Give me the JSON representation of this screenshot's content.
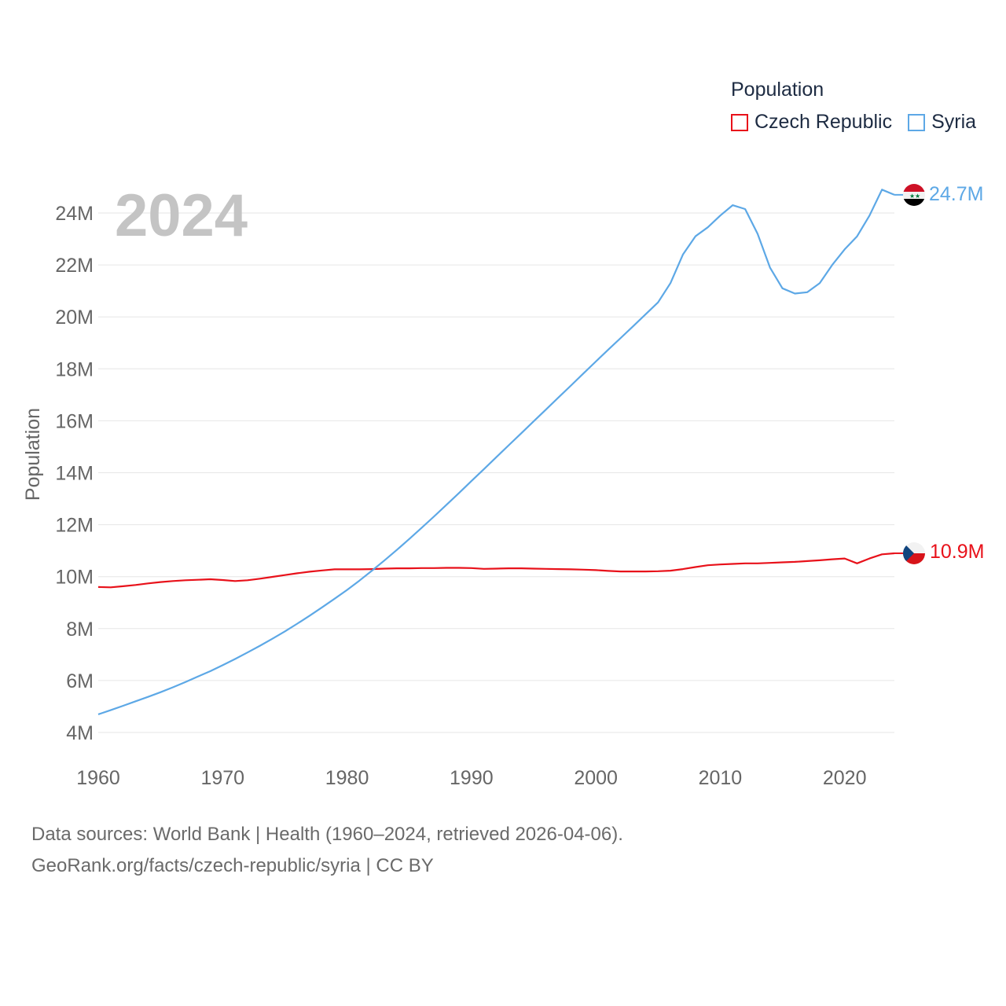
{
  "chart_data": {
    "type": "line",
    "title": "",
    "year_label": "2024",
    "xlabel": "",
    "ylabel": "Population",
    "xlim": [
      1960,
      2024
    ],
    "ylim": [
      4000000,
      24000000
    ],
    "x_ticks": [
      1960,
      1970,
      1980,
      1990,
      2000,
      2010,
      2020
    ],
    "y_ticks": [
      4000000,
      6000000,
      8000000,
      10000000,
      12000000,
      14000000,
      16000000,
      18000000,
      20000000,
      22000000,
      24000000
    ],
    "y_tick_labels": [
      "4M",
      "6M",
      "8M",
      "10M",
      "12M",
      "14M",
      "16M",
      "18M",
      "20M",
      "22M",
      "24M"
    ],
    "legend": {
      "title": "Population",
      "position": "top-right"
    },
    "x": [
      1960,
      1961,
      1962,
      1963,
      1964,
      1965,
      1966,
      1967,
      1968,
      1969,
      1970,
      1971,
      1972,
      1973,
      1974,
      1975,
      1976,
      1977,
      1978,
      1979,
      1980,
      1981,
      1982,
      1983,
      1984,
      1985,
      1986,
      1987,
      1988,
      1989,
      1990,
      1991,
      1992,
      1993,
      1994,
      1995,
      1996,
      1997,
      1998,
      1999,
      2000,
      2001,
      2002,
      2003,
      2004,
      2005,
      2006,
      2007,
      2008,
      2009,
      2010,
      2011,
      2012,
      2013,
      2014,
      2015,
      2016,
      2017,
      2018,
      2019,
      2020,
      2021,
      2022,
      2023,
      2024
    ],
    "series": [
      {
        "name": "Czech Republic",
        "color": "#e8111a",
        "end_label": "10.9M",
        "values": [
          9600000,
          9590000,
          9630000,
          9680000,
          9740000,
          9790000,
          9830000,
          9860000,
          9880000,
          9900000,
          9870000,
          9830000,
          9860000,
          9920000,
          9990000,
          10060000,
          10130000,
          10190000,
          10240000,
          10280000,
          10280000,
          10280000,
          10290000,
          10310000,
          10320000,
          10320000,
          10330000,
          10330000,
          10340000,
          10340000,
          10330000,
          10300000,
          10310000,
          10320000,
          10320000,
          10310000,
          10300000,
          10290000,
          10280000,
          10270000,
          10250000,
          10220000,
          10200000,
          10200000,
          10200000,
          10210000,
          10230000,
          10290000,
          10370000,
          10440000,
          10470000,
          10490000,
          10510000,
          10510000,
          10530000,
          10550000,
          10570000,
          10600000,
          10630000,
          10670000,
          10700000,
          10510000,
          10700000,
          10860000,
          10900000
        ]
      },
      {
        "name": "Syria",
        "color": "#5da8e6",
        "end_label": "24.7M",
        "values": [
          4700000,
          4860000,
          5030000,
          5200000,
          5370000,
          5550000,
          5740000,
          5940000,
          6150000,
          6360000,
          6590000,
          6830000,
          7080000,
          7340000,
          7610000,
          7890000,
          8190000,
          8500000,
          8820000,
          9150000,
          9490000,
          9850000,
          10230000,
          10620000,
          11030000,
          11450000,
          11880000,
          12320000,
          12770000,
          13220000,
          13680000,
          14140000,
          14600000,
          15060000,
          15520000,
          15980000,
          16440000,
          16900000,
          17360000,
          17820000,
          18280000,
          18740000,
          19190000,
          19640000,
          20100000,
          20560000,
          21300000,
          22400000,
          23100000,
          23450000,
          23900000,
          24300000,
          24150000,
          23200000,
          21900000,
          21100000,
          20900000,
          20950000,
          21300000,
          22000000,
          22600000,
          23100000,
          23900000,
          24900000,
          24700000
        ]
      }
    ]
  },
  "footer": {
    "line1": "Data sources: World Bank | Health (1960–2024, retrieved 2026-04-06).",
    "line2": "GeoRank.org/facts/czech-republic/syria | CC BY"
  }
}
